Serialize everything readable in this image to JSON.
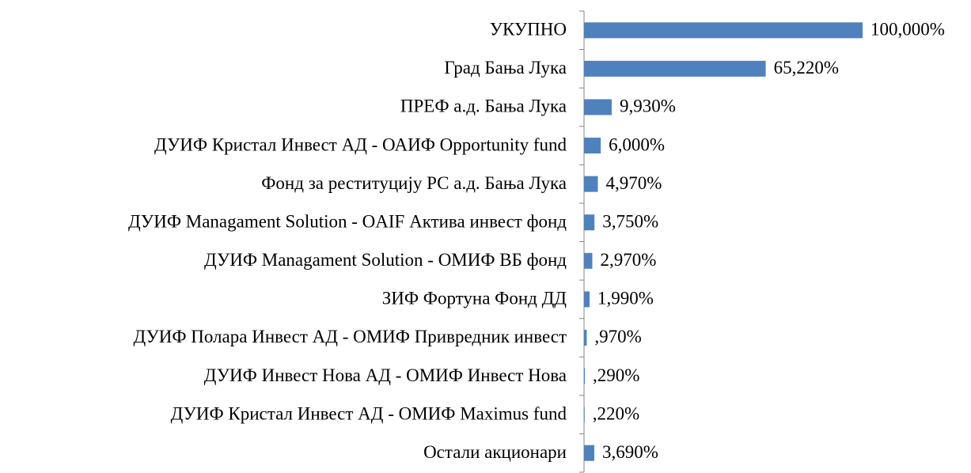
{
  "chart_data": {
    "type": "hbar",
    "categories": [
      "УКУПНО",
      "Град Бања Лука",
      "ПРЕФ а.д. Бања Лука",
      "ДУИФ Кристал Инвест АД - ОАИФ Opportunity fund",
      "Фонд за реституцију РС а.д. Бања Лука",
      "ДУИФ Managament Solution - OAIF Актива инвест фонд",
      "ДУИФ Managament Solution - ОМИФ ВБ фонд",
      "ЗИФ Фортуна Фонд ДД",
      "ДУИФ Полара Инвест АД - ОМИФ Привредник инвест",
      "ДУИФ Инвест Нова АД - ОМИФ Инвест Нова",
      "ДУИФ Кристал Инвест АД - ОМИФ Maximus fund",
      "Остали акционари"
    ],
    "values": [
      100,
      65.22,
      9.93,
      6,
      4.97,
      3.75,
      2.97,
      1.99,
      0.97,
      0.29,
      0.22,
      3.69
    ],
    "value_labels": [
      "100,000%",
      "65,220%",
      "9,930%",
      "6,000%",
      "4,970%",
      "3,750%",
      "2,970%",
      "1,990%",
      ",970%",
      ",290%",
      ",220%",
      "3,690%"
    ],
    "color": "#4f81bd",
    "xlim": [
      0,
      100
    ]
  }
}
